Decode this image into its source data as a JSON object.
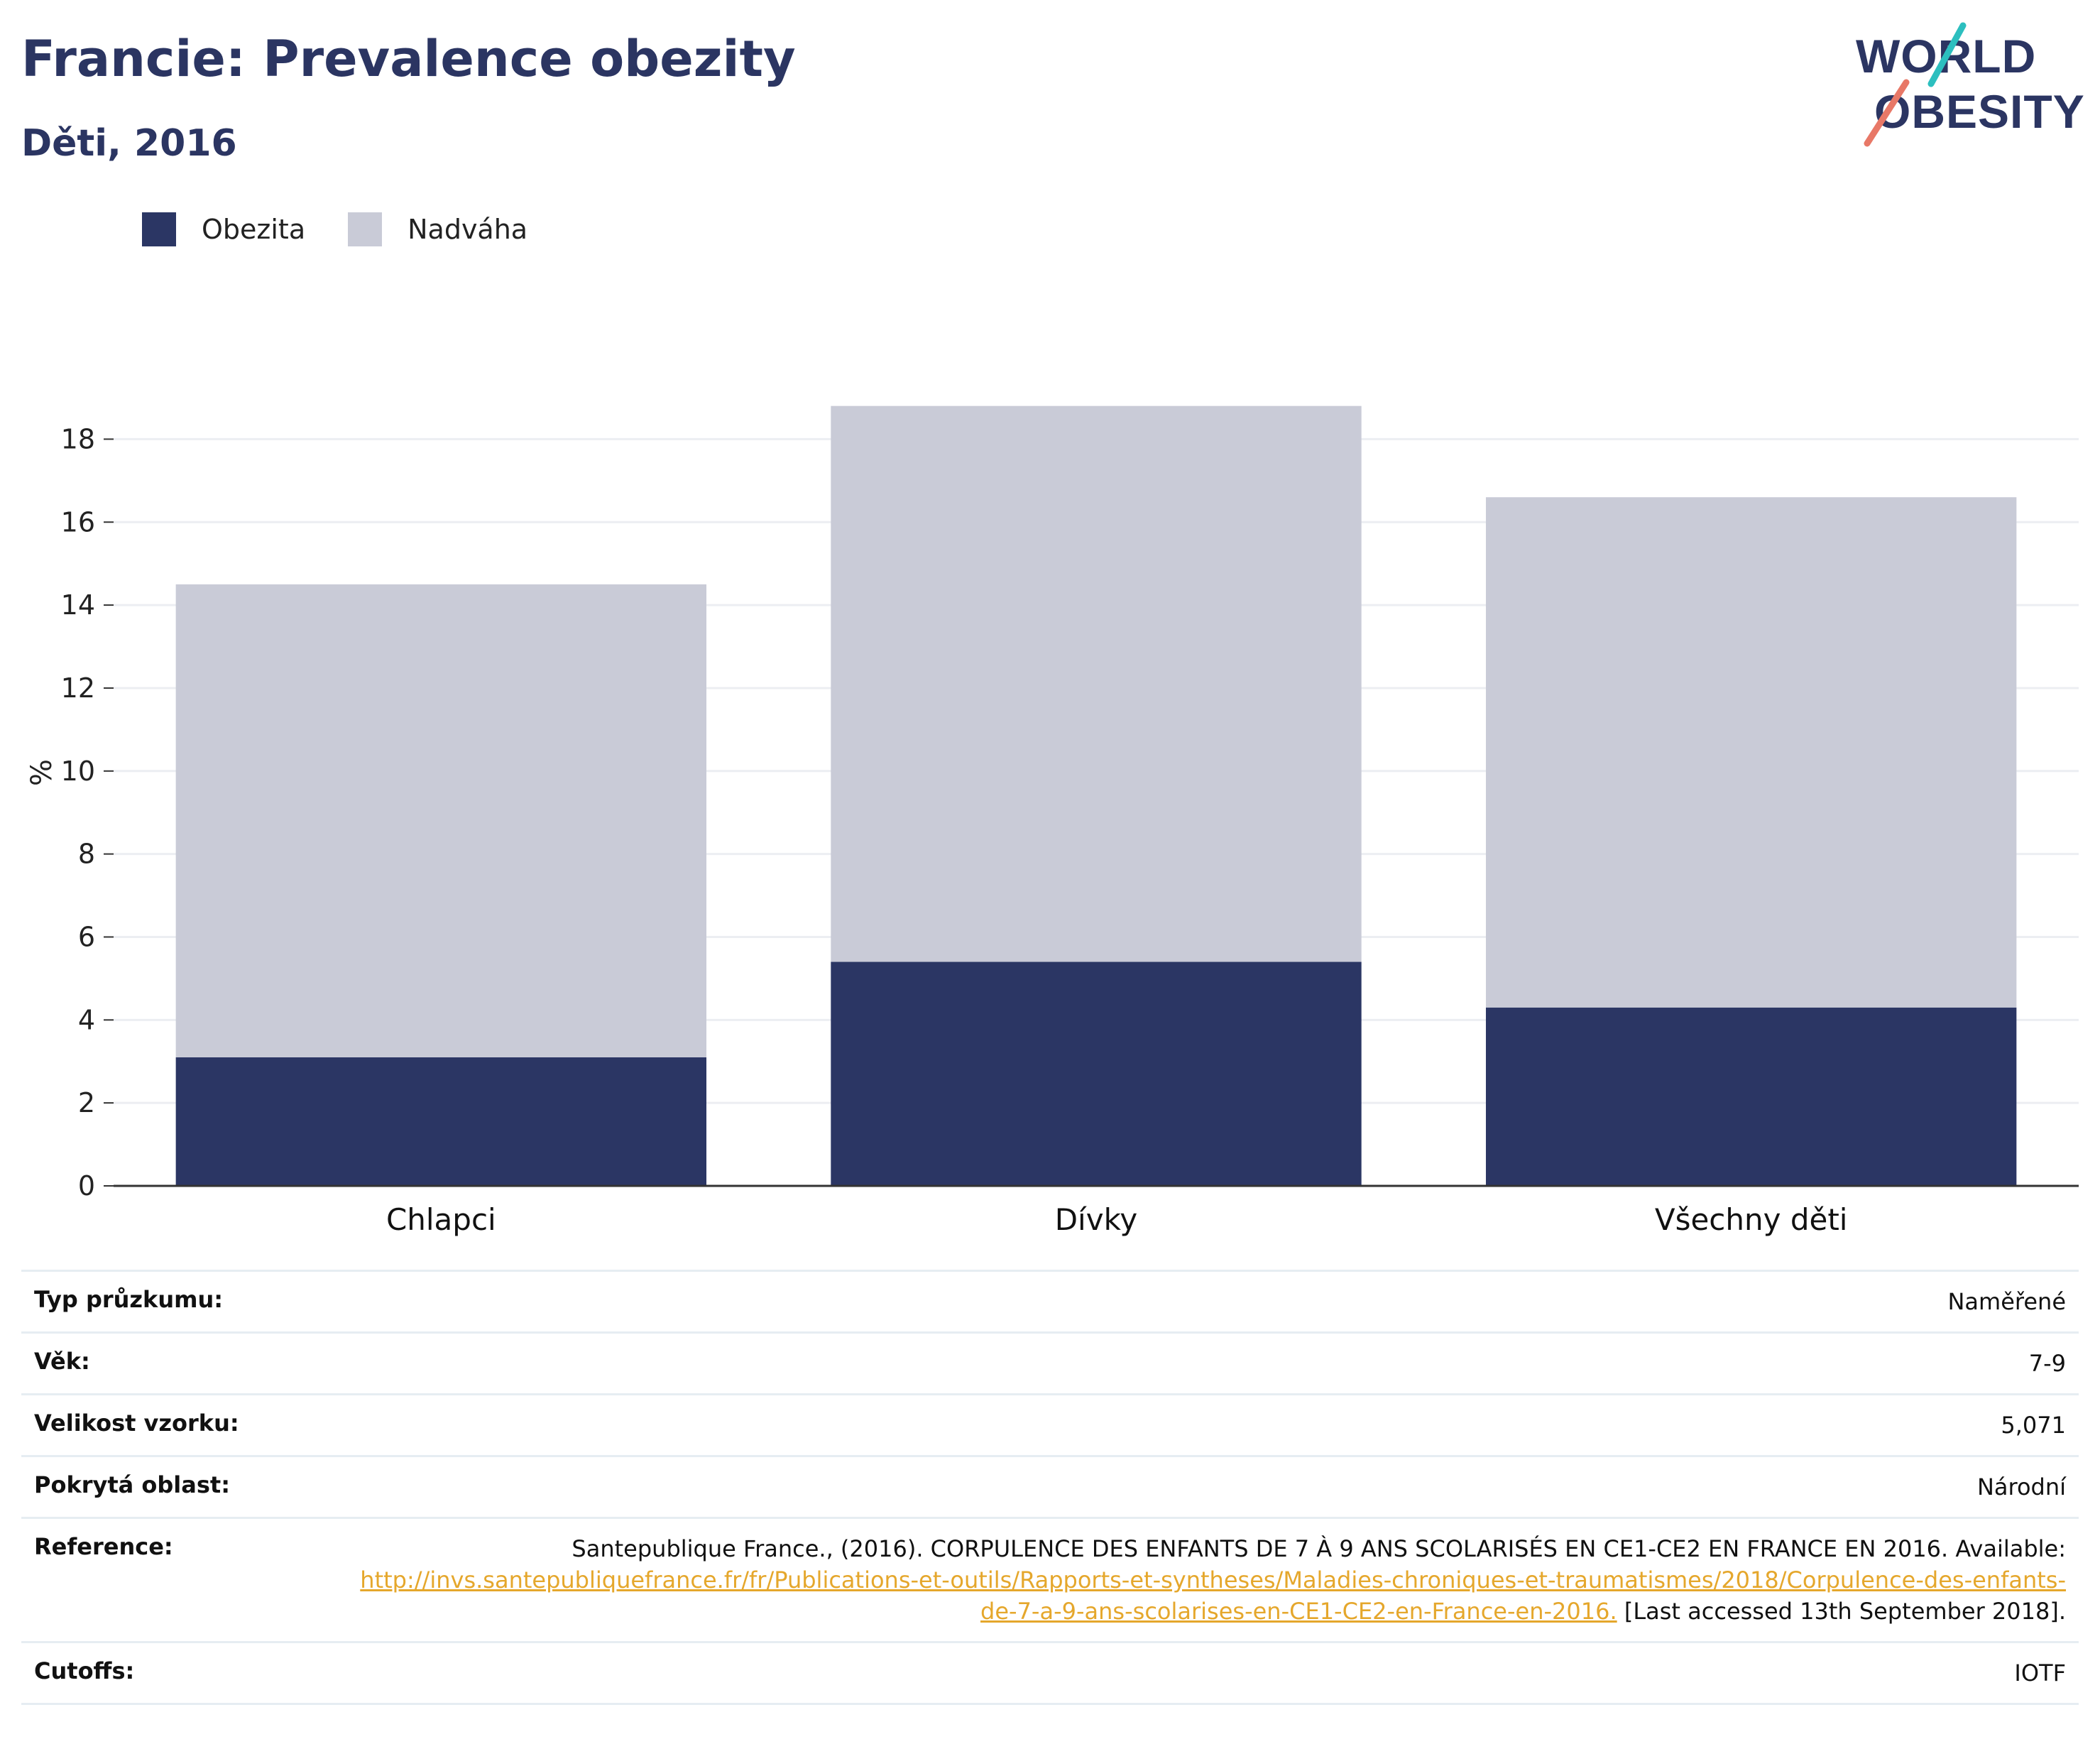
{
  "header": {
    "title": "Francie: Prevalence obezity",
    "subtitle": "Děti, 2016",
    "logo_text_1": "WORLD",
    "logo_text_2": "OBESITY"
  },
  "colors": {
    "obezita": "#2b3664",
    "nadvaha": "#c9cbd7",
    "title": "#2b3562",
    "logo_teal": "#2cbfbf",
    "logo_coral": "#e87867",
    "link": "#e5a72c"
  },
  "legend": [
    {
      "label": "Obezita",
      "color": "#2b3664"
    },
    {
      "label": "Nadváha",
      "color": "#c9cbd7"
    }
  ],
  "chart_data": {
    "type": "bar",
    "stacked": true,
    "categories": [
      "Chlapci",
      "Dívky",
      "Všechny děti"
    ],
    "series": [
      {
        "name": "Obezita",
        "values": [
          3.1,
          5.4,
          4.3
        ]
      },
      {
        "name": "Nadváha",
        "values": [
          11.4,
          13.4,
          12.3
        ]
      }
    ],
    "ylabel": "%",
    "ylim": [
      0,
      19
    ],
    "yticks": [
      0,
      2,
      4,
      6,
      8,
      10,
      12,
      14,
      16,
      18
    ],
    "grid": true,
    "legend_position": "top-left"
  },
  "info": {
    "survey_type": {
      "label": "Typ průzkumu:",
      "value": "Naměřené"
    },
    "age": {
      "label": "Věk:",
      "value": "7-9"
    },
    "sample_size": {
      "label": "Velikost vzorku:",
      "value": "5,071"
    },
    "coverage": {
      "label": "Pokrytá oblast:",
      "value": "Národní"
    },
    "reference": {
      "label": "Reference:",
      "text_before": "Santepublique France., (2016). CORPULENCE DES ENFANTS DE 7 À 9 ANS SCOLARISÉS EN CE1-CE2 EN FRANCE EN 2016. Available: ",
      "link": "http://invs.santepubliquefrance.fr/fr/Publications-et-outils/Rapports-et-syntheses/Maladies-chroniques-et-traumatismes/2018/Corpulence-des-enfants-de-7-a-9-ans-scolarises-en-CE1-CE2-en-France-en-2016.",
      "text_after": " [Last accessed 13th September 2018]."
    },
    "cutoffs": {
      "label": "Cutoffs:",
      "value": "IOTF"
    }
  }
}
